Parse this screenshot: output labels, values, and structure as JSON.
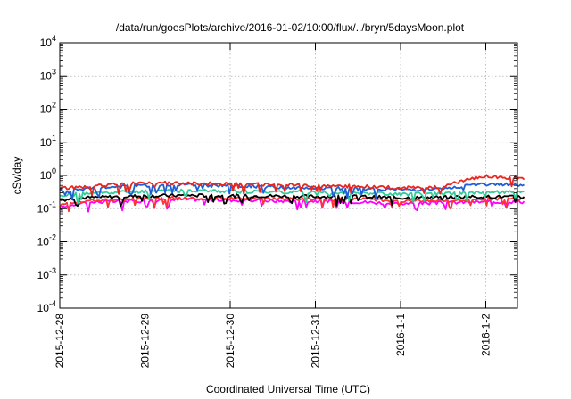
{
  "chart_data": {
    "type": "line",
    "title": "/data/run/goesPlots/archive/2016-01-02/10:00/flux/../bryn/5daysMoon.plot",
    "xlabel": "Coordinated Universal Time (UTC)",
    "ylabel": "cSv/day",
    "y_scale": "log",
    "ylim_exponents": [
      -4,
      4
    ],
    "y_ticks": [
      {
        "base": "10",
        "exp": "4"
      },
      {
        "base": "10",
        "exp": "3"
      },
      {
        "base": "10",
        "exp": "2"
      },
      {
        "base": "10",
        "exp": "1"
      },
      {
        "base": "10",
        "exp": "0"
      },
      {
        "base": "10",
        "exp": "-1"
      },
      {
        "base": "10",
        "exp": "-2"
      },
      {
        "base": "10",
        "exp": "-3"
      },
      {
        "base": "10",
        "exp": "-4"
      }
    ],
    "x_ticks": [
      "2015-12-28",
      "2015-12-29",
      "2015-12-30",
      "2015-12-31",
      "2016-1-1",
      "2016-1-2"
    ],
    "x_day_range": [
      0,
      5.45
    ],
    "grid": true,
    "series": [
      {
        "color": "#ff00ff",
        "times": [
          0,
          0.25,
          0.5,
          1.0,
          1.5,
          2.0,
          2.5,
          3.0,
          3.5,
          4.0,
          4.5,
          5.0,
          5.45
        ],
        "values": [
          0.1,
          0.15,
          0.16,
          0.17,
          0.19,
          0.18,
          0.17,
          0.17,
          0.16,
          0.14,
          0.15,
          0.16,
          0.16
        ]
      },
      {
        "color": "#ff3333",
        "times": [
          0,
          0.25,
          0.5,
          1.0,
          1.5,
          2.0,
          2.5,
          3.0,
          3.5,
          4.0,
          4.5,
          5.0,
          5.45
        ],
        "values": [
          0.14,
          0.17,
          0.18,
          0.2,
          0.21,
          0.2,
          0.2,
          0.19,
          0.19,
          0.17,
          0.18,
          0.2,
          0.19
        ]
      },
      {
        "color": "#000000",
        "times": [
          0,
          0.25,
          0.5,
          1.0,
          1.5,
          2.0,
          2.5,
          3.0,
          3.5,
          4.0,
          4.5,
          5.0,
          5.45
        ],
        "values": [
          0.18,
          0.21,
          0.22,
          0.24,
          0.25,
          0.24,
          0.24,
          0.23,
          0.23,
          0.21,
          0.22,
          0.23,
          0.22
        ]
      },
      {
        "color": "#33cc99",
        "times": [
          0,
          0.25,
          0.5,
          1.0,
          1.5,
          2.0,
          2.5,
          3.0,
          3.5,
          4.0,
          4.5,
          5.0,
          5.45
        ],
        "values": [
          0.24,
          0.28,
          0.3,
          0.33,
          0.35,
          0.33,
          0.32,
          0.31,
          0.3,
          0.27,
          0.28,
          0.32,
          0.3
        ]
      },
      {
        "color": "#1f5fd6",
        "times": [
          0,
          0.25,
          0.5,
          1.0,
          1.5,
          2.0,
          2.5,
          3.0,
          3.5,
          4.0,
          4.5,
          5.0,
          5.45
        ],
        "values": [
          0.35,
          0.38,
          0.42,
          0.5,
          0.52,
          0.48,
          0.45,
          0.42,
          0.4,
          0.37,
          0.38,
          0.55,
          0.5
        ]
      },
      {
        "color": "#e8261f",
        "times": [
          0,
          0.25,
          0.5,
          1.0,
          1.5,
          2.0,
          2.5,
          3.0,
          3.5,
          4.0,
          4.5,
          5.0,
          5.45
        ],
        "values": [
          0.4,
          0.45,
          0.5,
          0.6,
          0.58,
          0.55,
          0.52,
          0.5,
          0.47,
          0.42,
          0.44,
          0.95,
          0.8
        ]
      }
    ]
  }
}
